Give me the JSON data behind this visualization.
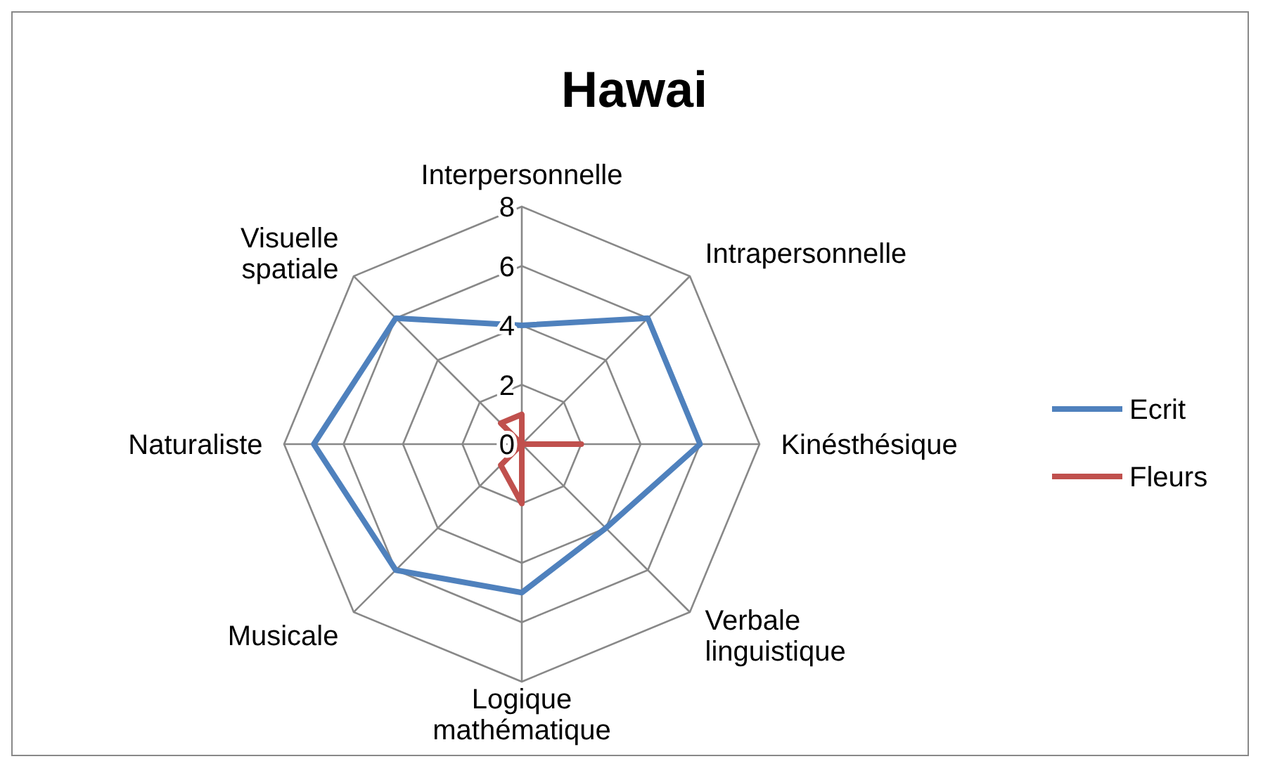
{
  "chart_data": {
    "type": "radar",
    "title": "Hawai",
    "categories": [
      "Interpersonnelle",
      "Intrapersonnelle",
      "Kinésthésique",
      "Verbale linguistique",
      "Logique mathématique",
      "Musicale",
      "Naturaliste",
      "Visuelle spatiale"
    ],
    "series": [
      {
        "name": "Ecrit",
        "color": "#4f81bd",
        "values": [
          4,
          6,
          6,
          4,
          5,
          6,
          7,
          6
        ]
      },
      {
        "name": "Fleurs",
        "color": "#c0504d",
        "values": [
          1,
          0,
          2,
          0,
          2,
          1,
          0,
          1
        ]
      }
    ],
    "ylim": [
      0,
      8
    ],
    "yticks": [
      0,
      2,
      4,
      6,
      8
    ],
    "legend": "right"
  }
}
